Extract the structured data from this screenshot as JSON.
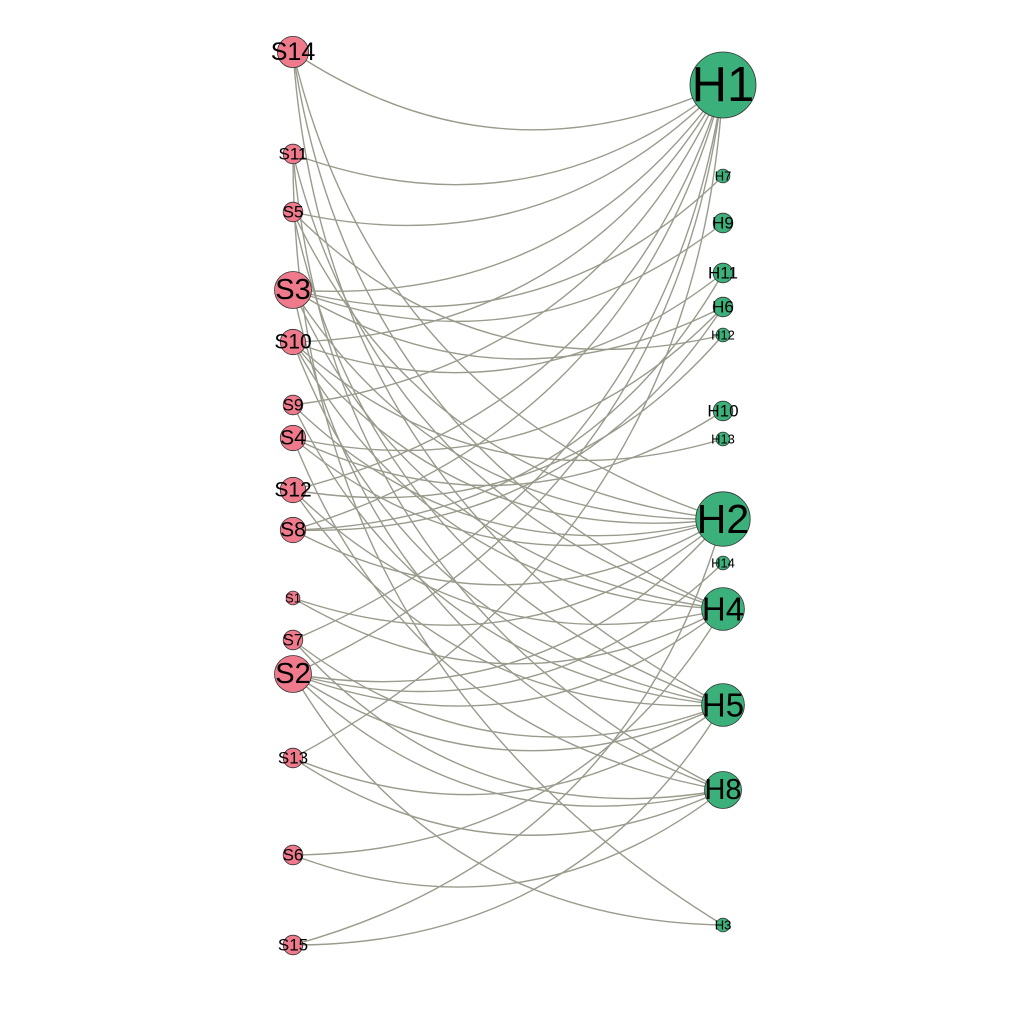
{
  "graph": {
    "type": "bipartite-network",
    "colors": {
      "left_node": "#ee7a8c",
      "right_node": "#3cb07a",
      "edge": "#9a9b8c",
      "node_stroke": "#333333"
    },
    "left_nodes": [
      {
        "id": "S14",
        "label": "S14",
        "rank": 0,
        "weight": 4
      },
      {
        "id": "S11",
        "label": "S11",
        "rank": 1,
        "weight": 2
      },
      {
        "id": "S5",
        "label": "S5",
        "rank": 2,
        "weight": 2
      },
      {
        "id": "S3",
        "label": "S3",
        "rank": 3,
        "weight": 5
      },
      {
        "id": "S10",
        "label": "S10",
        "rank": 4,
        "weight": 3
      },
      {
        "id": "S9",
        "label": "S9",
        "rank": 5,
        "weight": 2
      },
      {
        "id": "S4",
        "label": "S4",
        "rank": 6,
        "weight": 3
      },
      {
        "id": "S12",
        "label": "S12",
        "rank": 7,
        "weight": 3
      },
      {
        "id": "S8",
        "label": "S8",
        "rank": 8,
        "weight": 3
      },
      {
        "id": "S1",
        "label": "S1",
        "rank": 9,
        "weight": 1
      },
      {
        "id": "S7",
        "label": "S7",
        "rank": 10,
        "weight": 2
      },
      {
        "id": "S2",
        "label": "S2",
        "rank": 11,
        "weight": 5
      },
      {
        "id": "S13",
        "label": "S13",
        "rank": 12,
        "weight": 2
      },
      {
        "id": "S6",
        "label": "S6",
        "rank": 13,
        "weight": 2
      },
      {
        "id": "S15",
        "label": "S15",
        "rank": 14,
        "weight": 2
      }
    ],
    "right_nodes": [
      {
        "id": "H1",
        "label": "H1",
        "rank": 0,
        "weight": 10
      },
      {
        "id": "H7",
        "label": "H7",
        "rank": 1,
        "weight": 1
      },
      {
        "id": "H9",
        "label": "H9",
        "rank": 2,
        "weight": 2
      },
      {
        "id": "H11",
        "label": "H11",
        "rank": 3,
        "weight": 2
      },
      {
        "id": "H6",
        "label": "H6",
        "rank": 4,
        "weight": 2
      },
      {
        "id": "H12",
        "label": "H12",
        "rank": 5,
        "weight": 1
      },
      {
        "id": "H10",
        "label": "H10",
        "rank": 6,
        "weight": 2
      },
      {
        "id": "H13",
        "label": "H13",
        "rank": 7,
        "weight": 1
      },
      {
        "id": "H2",
        "label": "H2",
        "rank": 8,
        "weight": 8
      },
      {
        "id": "H14",
        "label": "H14",
        "rank": 9,
        "weight": 1
      },
      {
        "id": "H4",
        "label": "H4",
        "rank": 10,
        "weight": 6
      },
      {
        "id": "H5",
        "label": "H5",
        "rank": 11,
        "weight": 6
      },
      {
        "id": "H8",
        "label": "H8",
        "rank": 12,
        "weight": 5
      },
      {
        "id": "H3",
        "label": "H3",
        "rank": 13,
        "weight": 1
      }
    ],
    "edges": [
      [
        "S14",
        "H1"
      ],
      [
        "S14",
        "H2"
      ],
      [
        "S14",
        "H4"
      ],
      [
        "S14",
        "H5"
      ],
      [
        "S11",
        "H1"
      ],
      [
        "S11",
        "H8"
      ],
      [
        "S11",
        "H4"
      ],
      [
        "S11",
        "H3"
      ],
      [
        "S5",
        "H1"
      ],
      [
        "S5",
        "H12"
      ],
      [
        "S5",
        "H2"
      ],
      [
        "S5",
        "H5"
      ],
      [
        "S3",
        "H1"
      ],
      [
        "S3",
        "H7"
      ],
      [
        "S3",
        "H9"
      ],
      [
        "S3",
        "H6"
      ],
      [
        "S3",
        "H2"
      ],
      [
        "S3",
        "H4"
      ],
      [
        "S3",
        "H8"
      ],
      [
        "S10",
        "H1"
      ],
      [
        "S10",
        "H11"
      ],
      [
        "S10",
        "H13"
      ],
      [
        "S10",
        "H2"
      ],
      [
        "S10",
        "H4"
      ],
      [
        "S10",
        "H5"
      ],
      [
        "S9",
        "H1"
      ],
      [
        "S9",
        "H2"
      ],
      [
        "S9",
        "H5"
      ],
      [
        "S4",
        "H6"
      ],
      [
        "S4",
        "H10"
      ],
      [
        "S4",
        "H2"
      ],
      [
        "S4",
        "H8"
      ],
      [
        "S12",
        "H1"
      ],
      [
        "S12",
        "H12"
      ],
      [
        "S12",
        "H4"
      ],
      [
        "S12",
        "H5"
      ],
      [
        "S8",
        "H1"
      ],
      [
        "S8",
        "H6"
      ],
      [
        "S8",
        "H11"
      ],
      [
        "S8",
        "H2"
      ],
      [
        "S1",
        "H4"
      ],
      [
        "S1",
        "H2"
      ],
      [
        "S7",
        "H1"
      ],
      [
        "S7",
        "H8"
      ],
      [
        "S7",
        "H5"
      ],
      [
        "S2",
        "H1"
      ],
      [
        "S2",
        "H2"
      ],
      [
        "S2",
        "H14"
      ],
      [
        "S2",
        "H4"
      ],
      [
        "S2",
        "H5"
      ],
      [
        "S2",
        "H8"
      ],
      [
        "S2",
        "H3"
      ],
      [
        "S13",
        "H1"
      ],
      [
        "S13",
        "H5"
      ],
      [
        "S13",
        "H8"
      ],
      [
        "S6",
        "H4"
      ],
      [
        "S6",
        "H8"
      ],
      [
        "S15",
        "H5"
      ],
      [
        "S15",
        "H2"
      ]
    ]
  }
}
